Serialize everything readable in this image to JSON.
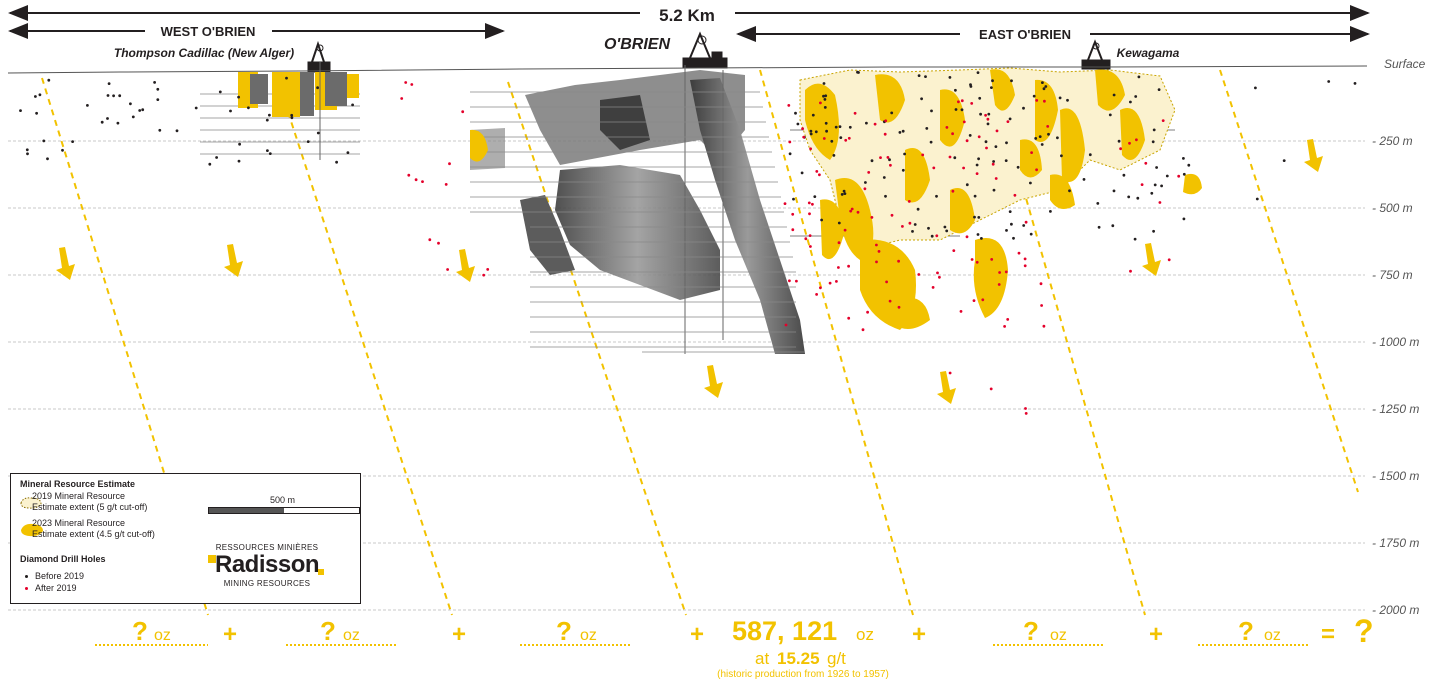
{
  "header": {
    "span_label": "5.2 Km",
    "west_label": "WEST O'BRIEN",
    "east_label": "EAST O'BRIEN",
    "center_label": "O'BRIEN",
    "thompson_label": "Thompson Cadillac (New Alger)",
    "kewagama_label": "Kewagama"
  },
  "depth_axis": {
    "surface_label": "Surface",
    "ticks": [
      "- 250 m",
      "- 500 m",
      "- 750 m",
      "- 1000 m",
      "- 1250 m",
      "- 1500 m",
      "- 1750 m",
      "- 2000 m"
    ]
  },
  "legend": {
    "title": "Mineral Resource Estimate",
    "item_2019_line1": "2019 Mineral Resource",
    "item_2019_line2": "Estimate extent (5  g/t cut-off)",
    "item_2023_line1": "2023 Mineral Resource",
    "item_2023_line2": "Estimate extent (4.5  g/t cut-off)",
    "drill_title": "Diamond Drill Holes",
    "before_label": "Before 2019",
    "after_label": "After 2019",
    "scale_label": "500 m",
    "dot_before_color": "#231f20",
    "dot_after_color": "#e4002b"
  },
  "logo": {
    "line1": "RESSOURCES MINIÈRES",
    "name": "Radisson",
    "line3": "MINING RESOURCES"
  },
  "equation": {
    "unknown": "?",
    "oz_unit": "oz",
    "plus": "+",
    "equals": "=",
    "main_value": "587, 121",
    "main_unit": "oz",
    "grade_prefix": "at",
    "grade_value": "15.25",
    "grade_unit": "g/t",
    "note": "(historic production from 1926 to 1957)"
  },
  "colors": {
    "gold": "#f2c200",
    "dark": "#231f20",
    "red_dot": "#e4002b",
    "gray_lens": "#6b6b6b"
  }
}
